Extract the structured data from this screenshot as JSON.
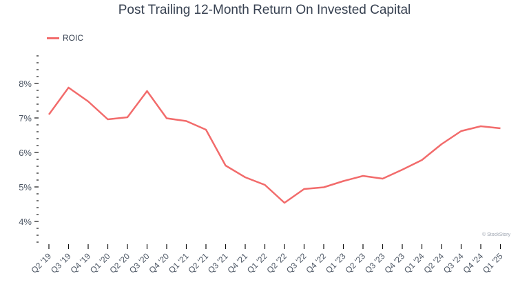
{
  "chart_data": {
    "type": "line",
    "title": "Post Trailing 12-Month Return On Invested Capital",
    "xlabel": "",
    "ylabel": "",
    "ylim": [
      3.4,
      8.8
    ],
    "yticks": [
      "4%",
      "5%",
      "6%",
      "7%",
      "8%"
    ],
    "ytick_values": [
      4,
      5,
      6,
      7,
      8
    ],
    "grid": false,
    "legend_position": "top-left",
    "categories": [
      "Q2 '19",
      "Q3 '19",
      "Q4 '19",
      "Q1 '20",
      "Q2 '20",
      "Q3 '20",
      "Q4 '20",
      "Q1 '21",
      "Q2 '21",
      "Q3 '21",
      "Q4 '21",
      "Q1 '22",
      "Q2 '22",
      "Q3 '22",
      "Q4 '22",
      "Q1 '23",
      "Q2 '23",
      "Q3 '23",
      "Q4 '23",
      "Q1 '24",
      "Q2 '24",
      "Q3 '24",
      "Q4 '24",
      "Q1 '25"
    ],
    "series": [
      {
        "name": "ROIC",
        "color": "#f26b6b",
        "values": [
          7.1,
          7.88,
          7.48,
          6.96,
          7.02,
          7.78,
          6.99,
          6.91,
          6.66,
          5.62,
          5.28,
          5.06,
          4.54,
          4.94,
          4.99,
          5.17,
          5.32,
          5.24,
          5.5,
          5.78,
          6.24,
          6.62,
          6.76,
          6.7
        ]
      }
    ]
  },
  "legend": {
    "label": "ROIC",
    "color": "#f26b6b"
  },
  "credit": "© StockStory"
}
